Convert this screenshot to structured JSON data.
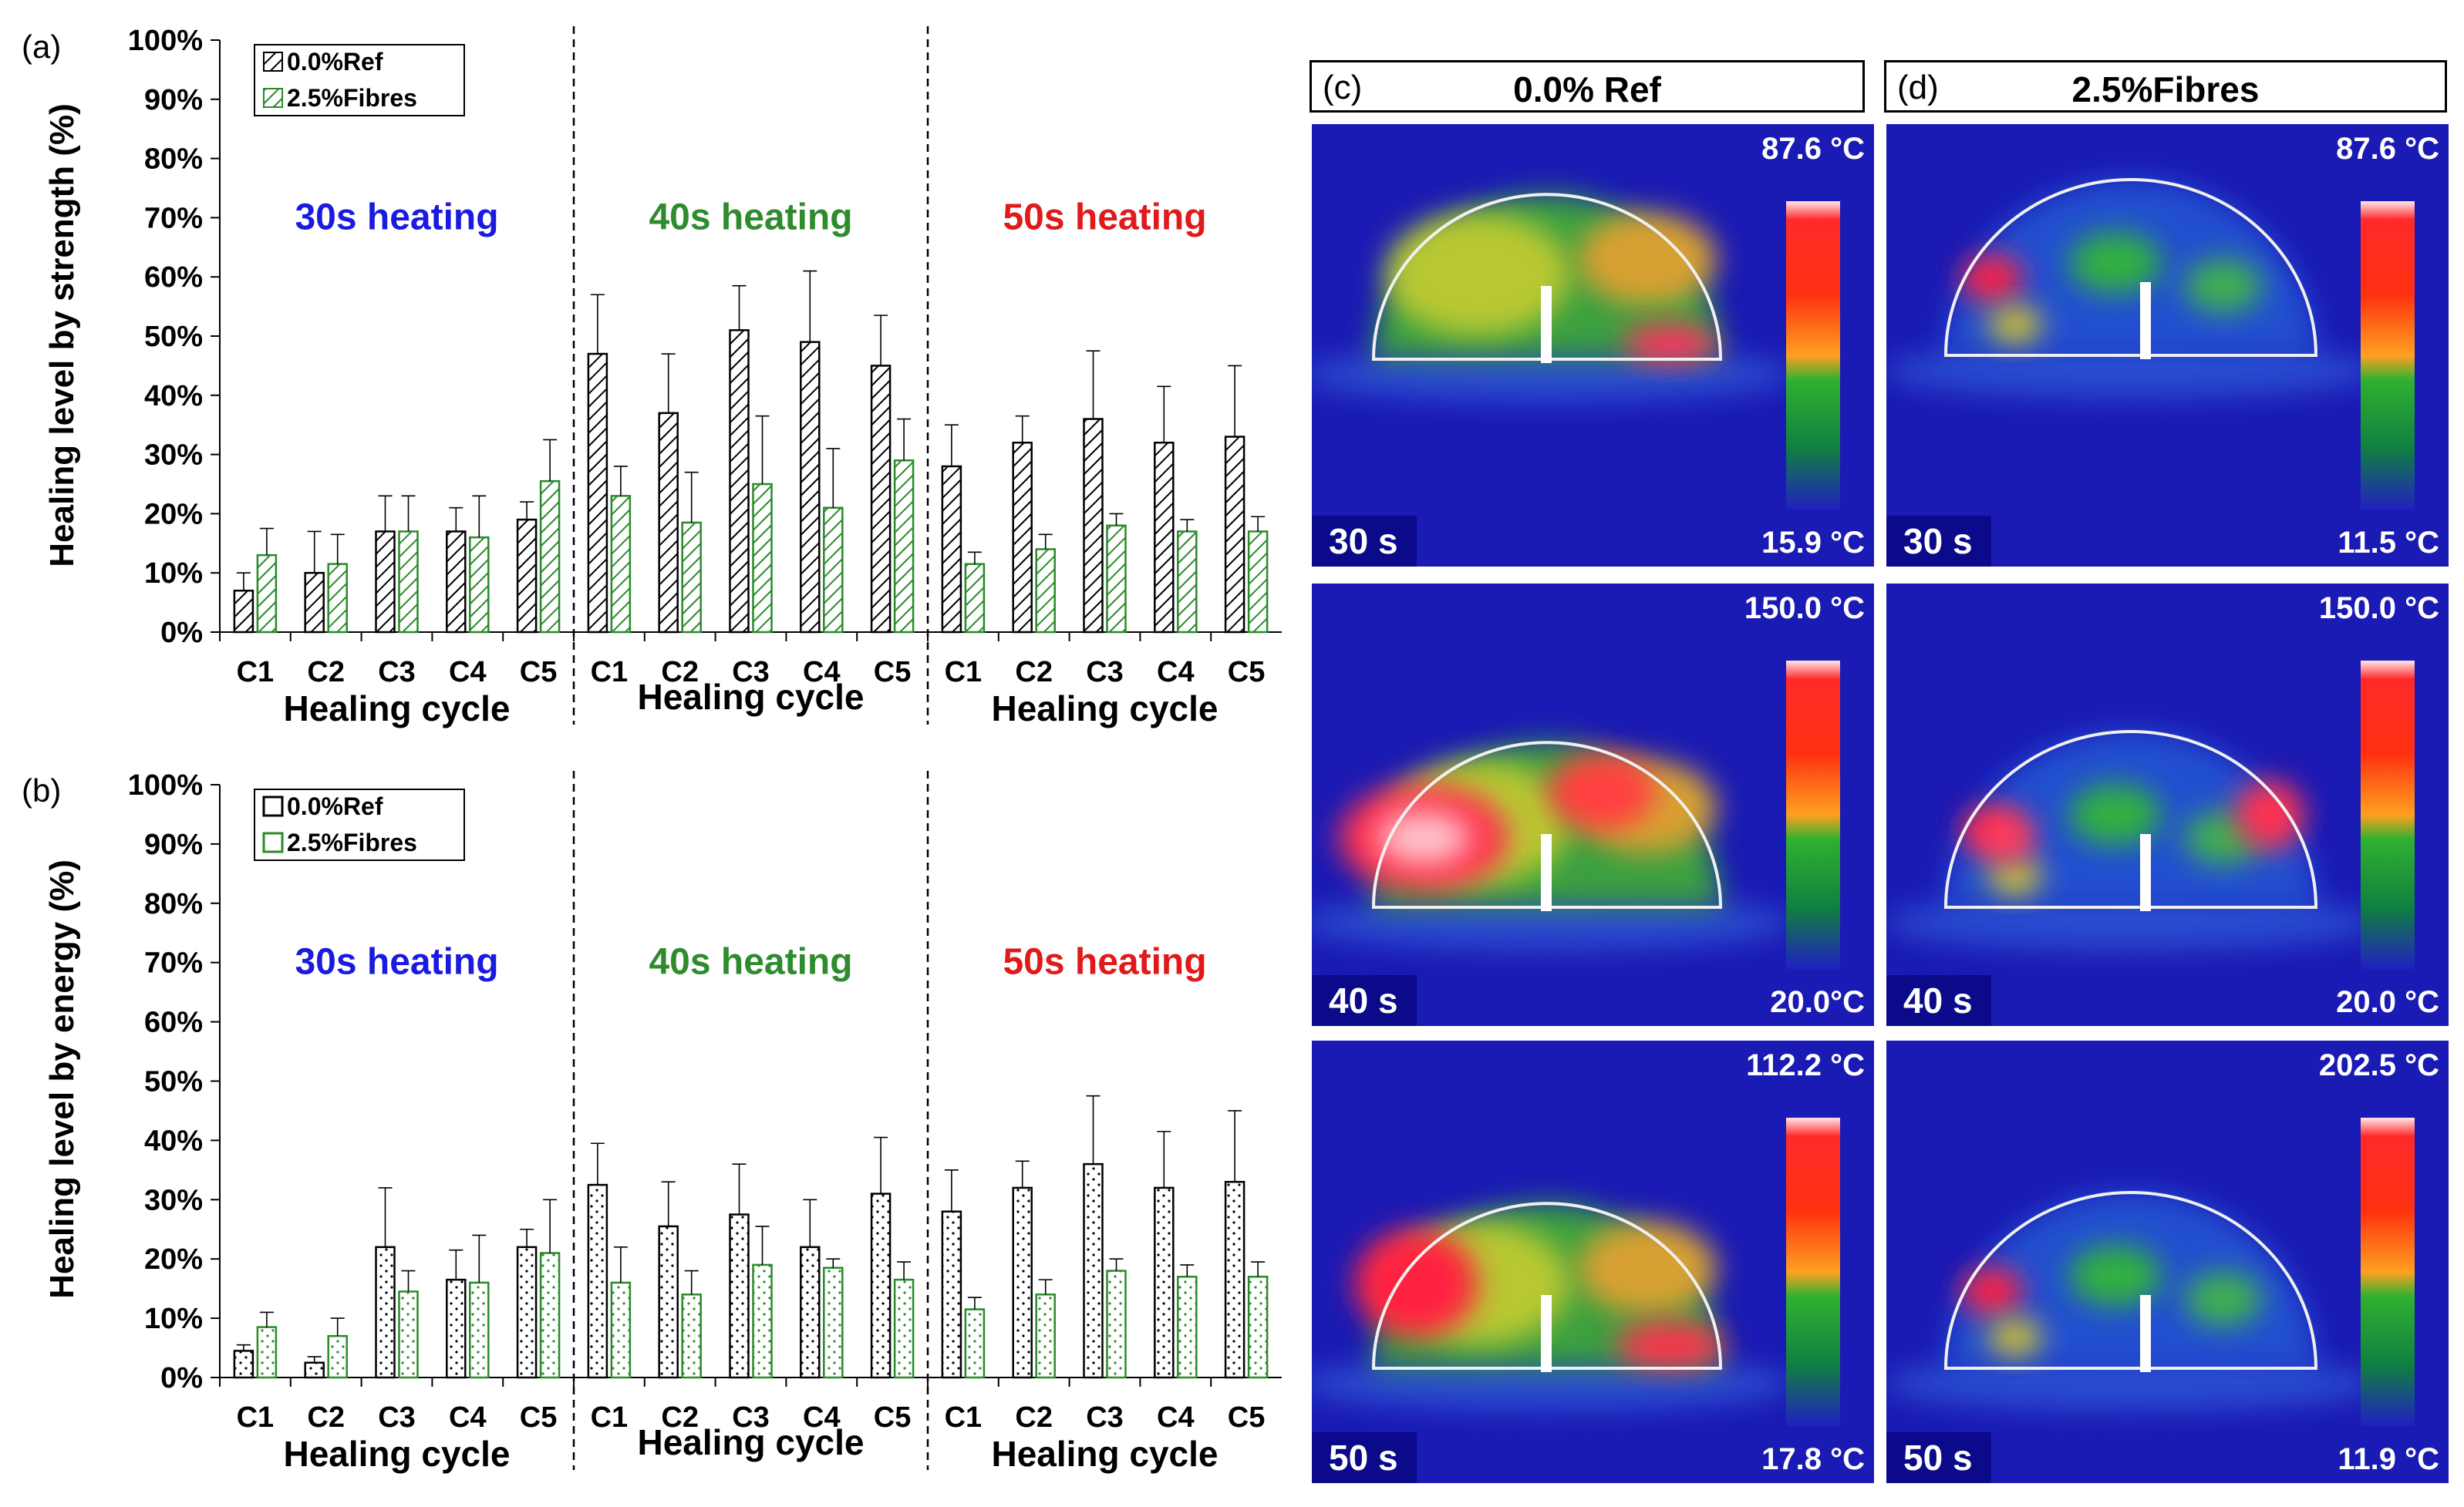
{
  "chart_data": [
    {
      "panel": "(a)",
      "type": "bar",
      "ylabel": "Healing level by strength (%)",
      "ylim": [
        0,
        100
      ],
      "y_ticks": [
        "0%",
        "10%",
        "20%",
        "30%",
        "40%",
        "50%",
        "60%",
        "70%",
        "80%",
        "90%",
        "100%"
      ],
      "legend": [
        "0.0%Ref",
        "2.5%Fibres"
      ],
      "groups": [
        {
          "label": "30s heating",
          "xlabel": "Healing cycle",
          "categories": [
            "C1",
            "C2",
            "C3",
            "C4",
            "C5"
          ],
          "series": [
            {
              "name": "0.0%Ref",
              "values": [
                7,
                10,
                17,
                17,
                19
              ],
              "errors": [
                3,
                7,
                6,
                4,
                3
              ]
            },
            {
              "name": "2.5%Fibres",
              "values": [
                13,
                11.5,
                17,
                16,
                25.5
              ],
              "errors": [
                4.5,
                5,
                6,
                7,
                7
              ]
            }
          ]
        },
        {
          "label": "40s heating",
          "xlabel": "Healing cycle",
          "categories": [
            "C1",
            "C2",
            "C3",
            "C4",
            "C5"
          ],
          "series": [
            {
              "name": "0.0%Ref",
              "values": [
                47,
                37,
                51,
                49,
                45
              ],
              "errors": [
                10,
                10,
                7.5,
                12,
                8.5
              ]
            },
            {
              "name": "2.5%Fibres",
              "values": [
                23,
                18.5,
                25,
                21,
                29
              ],
              "errors": [
                5,
                8.5,
                11.5,
                10,
                7
              ]
            }
          ]
        },
        {
          "label": "50s heating",
          "xlabel": "Healing cycle",
          "categories": [
            "C1",
            "C2",
            "C3",
            "C4",
            "C5"
          ],
          "series": [
            {
              "name": "0.0%Ref",
              "values": [
                28,
                32,
                36,
                32,
                33
              ],
              "errors": [
                7,
                4.5,
                11.5,
                9.5,
                12
              ]
            },
            {
              "name": "2.5%Fibres",
              "values": [
                11.5,
                14,
                18,
                17,
                17
              ],
              "errors": [
                2,
                2.5,
                2,
                2,
                2.5
              ]
            }
          ]
        }
      ]
    },
    {
      "panel": "(b)",
      "type": "bar",
      "ylabel": "Healing level by energy (%)",
      "ylim": [
        0,
        100
      ],
      "y_ticks": [
        "0%",
        "10%",
        "20%",
        "30%",
        "40%",
        "50%",
        "60%",
        "70%",
        "80%",
        "90%",
        "100%"
      ],
      "legend": [
        "0.0%Ref",
        "2.5%Fibres"
      ],
      "groups": [
        {
          "label": "30s heating",
          "xlabel": "Healing cycle",
          "categories": [
            "C1",
            "C2",
            "C3",
            "C4",
            "C5"
          ],
          "series": [
            {
              "name": "0.0%Ref",
              "values": [
                4.5,
                2.5,
                22,
                16.5,
                22
              ],
              "errors": [
                1,
                1,
                10,
                5,
                3
              ]
            },
            {
              "name": "2.5%Fibres",
              "values": [
                8.5,
                7,
                14.5,
                16,
                21
              ],
              "errors": [
                2.5,
                3,
                3.5,
                8,
                9
              ]
            }
          ]
        },
        {
          "label": "40s heating",
          "xlabel": "Healing cycle",
          "categories": [
            "C1",
            "C2",
            "C3",
            "C4",
            "C5"
          ],
          "series": [
            {
              "name": "0.0%Ref",
              "values": [
                32.5,
                25.5,
                27.5,
                22,
                31
              ],
              "errors": [
                7,
                7.5,
                8.5,
                8,
                9.5
              ]
            },
            {
              "name": "2.5%Fibres",
              "values": [
                16,
                14,
                19,
                18.5,
                16.5
              ],
              "errors": [
                6,
                4,
                6.5,
                1.5,
                3
              ]
            }
          ]
        },
        {
          "label": "50s heating",
          "xlabel": "Healing cycle",
          "categories": [
            "C1",
            "C2",
            "C3",
            "C4",
            "C5"
          ],
          "series": [
            {
              "name": "0.0%Ref",
              "values": [
                28,
                32,
                36,
                32,
                33
              ],
              "errors": [
                7,
                4.5,
                11.5,
                9.5,
                12
              ]
            },
            {
              "name": "2.5%Fibres",
              "values": [
                11.5,
                14,
                18,
                17,
                17
              ],
              "errors": [
                2,
                2.5,
                2,
                2,
                2.5
              ]
            }
          ]
        }
      ]
    }
  ],
  "thermal": {
    "panels": [
      {
        "label": "(c)",
        "title": "0.0% Ref"
      },
      {
        "label": "(d)",
        "title": "2.5%Fibres"
      }
    ],
    "images": [
      {
        "time": "30 s",
        "tmax": "87.6 °C",
        "tmin": "15.9 °C"
      },
      {
        "time": "30 s",
        "tmax": "87.6 °C",
        "tmin": "11.5 °C"
      },
      {
        "time": "40 s",
        "tmax": "150.0 °C",
        "tmin": "20.0°C"
      },
      {
        "time": "40 s",
        "tmax": "150.0 °C",
        "tmin": "20.0 °C"
      },
      {
        "time": "50 s",
        "tmax": "112.2 °C",
        "tmin": "17.8 °C"
      },
      {
        "time": "50 s",
        "tmax": "202.5 °C",
        "tmin": "11.9 °C"
      }
    ]
  },
  "colors": {
    "ref": "#000000",
    "fibres": "#2a8a2a",
    "heat30": "#1a1ae0",
    "heat40": "#2e8b2e",
    "heat50": "#e01a1a"
  }
}
